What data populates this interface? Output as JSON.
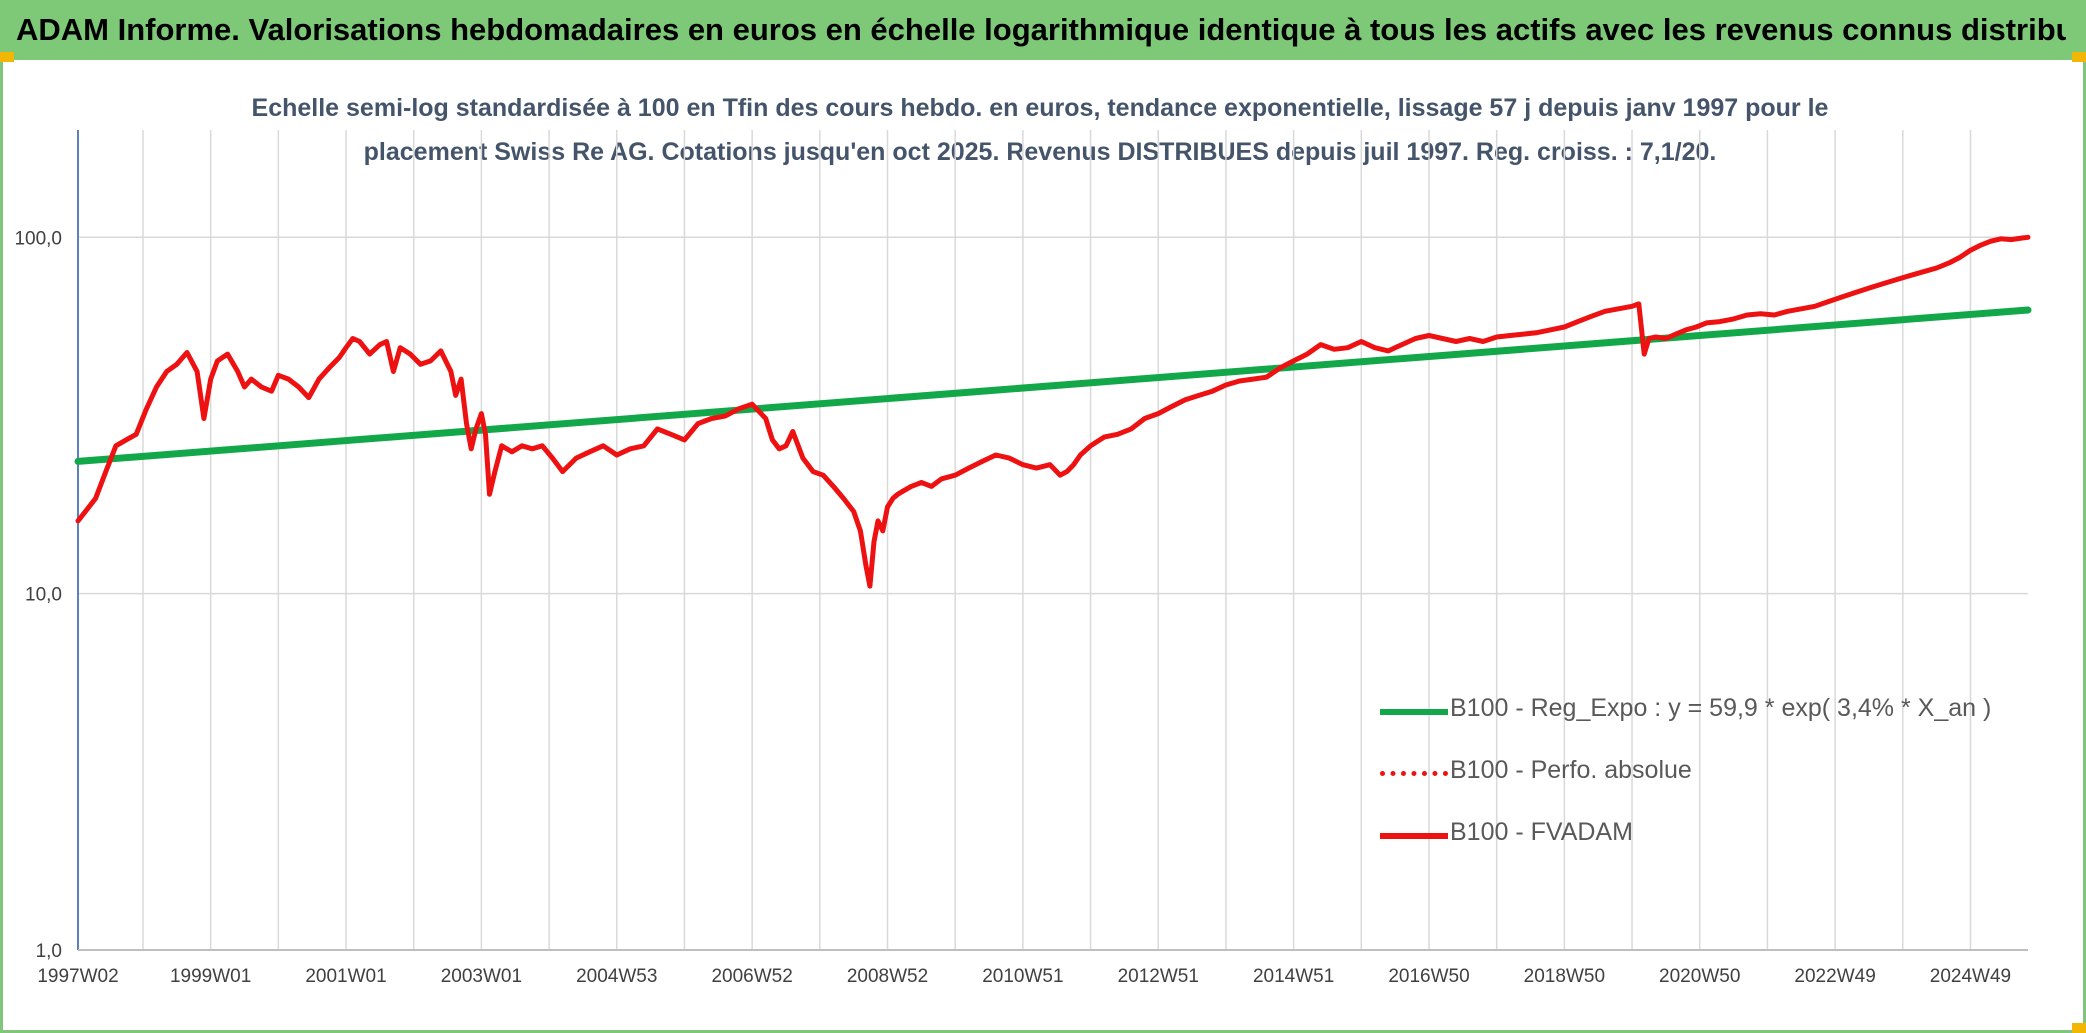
{
  "header": {
    "title": "ADAM Informe. Valorisations hebdomadaires en euros en échelle logarithmique identique à tous les actifs avec les revenus connus distribués"
  },
  "colors": {
    "header_bg": "#7ec978",
    "regression": "#12a84a",
    "fvadam": "#ee1111",
    "grid": "#d9d9d9"
  },
  "chart_data": {
    "type": "line",
    "y_scale": "log",
    "title_line1": "Echelle semi-log standardisée à 100 en Tfin des cours hebdo. en euros, tendance exponentielle, lissage 57 j depuis janv 1997 pour le",
    "title_line2": "placement Swiss Re AG. Cotations jusqu'en oct 2025. Revenus DISTRIBUES depuis juil 1997. Reg. croiss. : 7,1/20.",
    "ylim": [
      1,
      200
    ],
    "xlim": [
      1997.04,
      2025.85
    ],
    "yticks": [
      {
        "value": 1,
        "label": "1,0"
      },
      {
        "value": 10,
        "label": "10,0"
      },
      {
        "value": 100,
        "label": "100,0"
      }
    ],
    "xticks": [
      {
        "value": 1997.04,
        "label": "1997W02"
      },
      {
        "value": 1999.0,
        "label": "1999W01"
      },
      {
        "value": 2001.0,
        "label": "2001W01"
      },
      {
        "value": 2003.0,
        "label": "2003W01"
      },
      {
        "value": 2005.0,
        "label": "2004W53"
      },
      {
        "value": 2007.0,
        "label": "2006W52"
      },
      {
        "value": 2009.0,
        "label": "2008W52"
      },
      {
        "value": 2011.0,
        "label": "2010W51"
      },
      {
        "value": 2013.0,
        "label": "2012W51"
      },
      {
        "value": 2015.0,
        "label": "2014W51"
      },
      {
        "value": 2017.0,
        "label": "2016W50"
      },
      {
        "value": 2019.0,
        "label": "2018W50"
      },
      {
        "value": 2021.0,
        "label": "2020W50"
      },
      {
        "value": 2023.0,
        "label": "2022W49"
      },
      {
        "value": 2025.0,
        "label": "2024W49"
      }
    ],
    "grid": true,
    "legend_position": "right",
    "series": [
      {
        "name": "B100 - Reg_Expo : y = 59,9 * exp( 3,4% *  X_an )",
        "style": "solid",
        "color": "#12a84a",
        "x": [
          1997.04,
          2025.85
        ],
        "y": [
          23.5,
          62.5
        ]
      },
      {
        "name": "B100 - Perfo. absolue",
        "style": "dotted",
        "color": "#ee1111",
        "x": [],
        "y": []
      },
      {
        "name": "B100 - FVADAM",
        "style": "solid",
        "color": "#ee1111",
        "x": [
          1997.04,
          1997.15,
          1997.3,
          1997.45,
          1997.6,
          1997.75,
          1997.9,
          1998.05,
          1998.2,
          1998.35,
          1998.5,
          1998.65,
          1998.8,
          1998.9,
          1999.0,
          1999.1,
          1999.25,
          1999.4,
          1999.5,
          1999.6,
          1999.75,
          1999.9,
          2000.0,
          2000.15,
          2000.3,
          2000.45,
          2000.6,
          2000.75,
          2000.9,
          2001.0,
          2001.1,
          2001.2,
          2001.35,
          2001.5,
          2001.6,
          2001.7,
          2001.8,
          2001.95,
          2002.1,
          2002.25,
          2002.4,
          2002.55,
          2002.62,
          2002.7,
          2002.78,
          2002.85,
          2002.92,
          2003.0,
          2003.06,
          2003.12,
          2003.2,
          2003.3,
          2003.45,
          2003.6,
          2003.75,
          2003.9,
          2004.05,
          2004.2,
          2004.4,
          2004.6,
          2004.8,
          2005.0,
          2005.2,
          2005.4,
          2005.6,
          2005.8,
          2006.0,
          2006.2,
          2006.4,
          2006.6,
          2006.8,
          2007.0,
          2007.2,
          2007.3,
          2007.4,
          2007.5,
          2007.6,
          2007.75,
          2007.9,
          2008.05,
          2008.2,
          2008.35,
          2008.5,
          2008.6,
          2008.68,
          2008.74,
          2008.8,
          2008.86,
          2008.93,
          2009.0,
          2009.08,
          2009.15,
          2009.25,
          2009.35,
          2009.5,
          2009.65,
          2009.8,
          2010.0,
          2010.2,
          2010.4,
          2010.6,
          2010.8,
          2011.0,
          2011.2,
          2011.4,
          2011.55,
          2011.65,
          2011.75,
          2011.85,
          2012.0,
          2012.2,
          2012.4,
          2012.6,
          2012.8,
          2013.0,
          2013.2,
          2013.4,
          2013.6,
          2013.8,
          2014.0,
          2014.2,
          2014.4,
          2014.6,
          2014.8,
          2015.0,
          2015.2,
          2015.4,
          2015.6,
          2015.8,
          2016.0,
          2016.2,
          2016.4,
          2016.6,
          2016.8,
          2017.0,
          2017.2,
          2017.4,
          2017.6,
          2017.8,
          2018.0,
          2018.2,
          2018.4,
          2018.6,
          2018.8,
          2019.0,
          2019.2,
          2019.4,
          2019.6,
          2019.8,
          2020.0,
          2020.1,
          2020.18,
          2020.25,
          2020.35,
          2020.5,
          2020.65,
          2020.8,
          2020.95,
          2021.1,
          2021.3,
          2021.5,
          2021.7,
          2021.9,
          2022.1,
          2022.3,
          2022.5,
          2022.7,
          2022.9,
          2023.1,
          2023.3,
          2023.5,
          2023.7,
          2023.9,
          2024.1,
          2024.3,
          2024.5,
          2024.7,
          2024.85,
          2025.0,
          2025.15,
          2025.3,
          2025.45,
          2025.6,
          2025.75,
          2025.85
        ],
        "y": [
          16.0,
          17.0,
          18.5,
          22.0,
          26.0,
          27.0,
          28.0,
          33.0,
          38.0,
          42.0,
          44.0,
          47.5,
          42.0,
          31.0,
          40.0,
          45.0,
          47.0,
          42.0,
          38.0,
          40.0,
          38.0,
          37.0,
          41.0,
          40.0,
          38.0,
          35.5,
          40.0,
          43.0,
          46.0,
          49.0,
          52.0,
          51.0,
          47.0,
          50.0,
          51.0,
          42.0,
          49.0,
          47.0,
          44.0,
          45.0,
          48.0,
          42.0,
          36.0,
          40.0,
          30.0,
          25.5,
          29.0,
          32.0,
          28.0,
          19.0,
          22.0,
          26.0,
          25.0,
          26.0,
          25.5,
          26.0,
          24.0,
          22.0,
          24.0,
          25.0,
          26.0,
          24.5,
          25.5,
          26.0,
          29.0,
          28.0,
          27.0,
          30.0,
          31.0,
          31.5,
          33.0,
          34.0,
          31.0,
          27.0,
          25.5,
          26.0,
          28.5,
          24.0,
          22.0,
          21.5,
          20.0,
          18.5,
          17.0,
          15.0,
          12.0,
          10.5,
          14.0,
          16.0,
          15.0,
          17.5,
          18.5,
          19.0,
          19.5,
          20.0,
          20.5,
          20.0,
          21.0,
          21.5,
          22.5,
          23.5,
          24.5,
          24.0,
          23.0,
          22.5,
          23.0,
          21.5,
          22.0,
          23.0,
          24.5,
          26.0,
          27.5,
          28.0,
          29.0,
          31.0,
          32.0,
          33.5,
          35.0,
          36.0,
          37.0,
          38.5,
          39.5,
          40.0,
          40.5,
          43.0,
          45.0,
          47.0,
          50.0,
          48.5,
          49.0,
          51.0,
          49.0,
          48.0,
          50.0,
          52.0,
          53.0,
          52.0,
          51.0,
          52.0,
          51.0,
          52.5,
          53.0,
          53.5,
          54.0,
          55.0,
          56.0,
          58.0,
          60.0,
          62.0,
          63.0,
          64.0,
          65.0,
          47.0,
          52.0,
          52.5,
          52.0,
          53.5,
          55.0,
          56.0,
          57.5,
          58.0,
          59.0,
          60.5,
          61.0,
          60.5,
          62.0,
          63.0,
          64.0,
          66.0,
          68.0,
          70.0,
          72.0,
          74.0,
          76.0,
          78.0,
          80.0,
          82.0,
          85.0,
          88.0,
          92.0,
          95.0,
          97.5,
          99.0,
          98.5,
          99.5,
          100.0
        ]
      }
    ]
  }
}
